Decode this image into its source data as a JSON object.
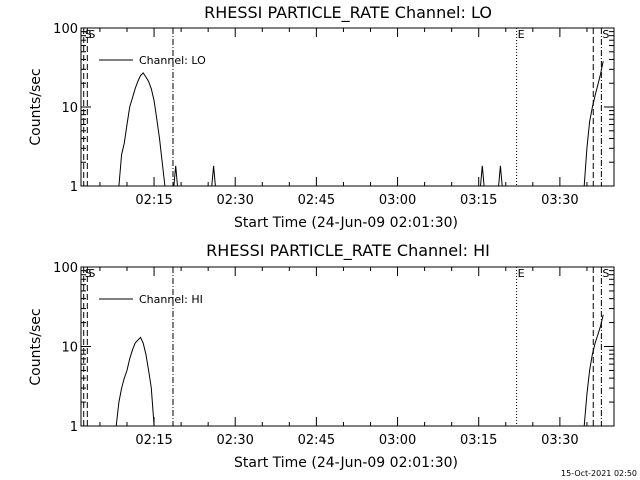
{
  "footer": {
    "timestamp": "15-Oct-2021 02:50"
  },
  "chart_data": [
    {
      "type": "line",
      "title": "RHESSI PARTICLE_RATE Channel: LO",
      "xlabel": "Start Time (24-Jun-09 02:01:30)",
      "ylabel": "Counts/sec",
      "yscale": "log",
      "ylim": [
        1,
        100
      ],
      "xlim": [
        "02:01:30",
        "03:40:00"
      ],
      "y_ticks": [
        1,
        10,
        100
      ],
      "y_tick_labels": [
        "1",
        "10",
        "100"
      ],
      "x_ticks": [
        "02:15",
        "02:30",
        "02:45",
        "03:00",
        "03:15",
        "03:30"
      ],
      "legend": {
        "position": "top-left",
        "entries": [
          "Channel: LO"
        ]
      },
      "series": [
        {
          "name": "Channel: LO",
          "x": [
            "02:07:30",
            "02:08:30",
            "02:09:00",
            "02:09:30",
            "02:10:00",
            "02:10:30",
            "02:11:00",
            "02:11:30",
            "02:12:00",
            "02:12:30",
            "02:13:00",
            "02:13:30",
            "02:14:00",
            "02:14:30",
            "02:15:00",
            "02:15:30",
            "02:16:00",
            "02:16:30",
            "02:17:00",
            "02:18:00",
            "02:18:40",
            "02:19:00",
            "02:19:20",
            "02:25:40",
            "02:26:00",
            "02:26:20",
            "03:15:20",
            "03:15:40",
            "03:16:00",
            "03:18:40",
            "03:19:00",
            "03:19:20",
            "03:34:30",
            "03:35:00",
            "03:35:30",
            "03:36:00",
            "03:36:30",
            "03:37:00",
            "03:37:30",
            "03:38:00"
          ],
          "y": [
            1,
            1,
            2.5,
            3.5,
            6,
            10,
            13,
            17,
            21,
            25,
            27,
            24,
            21,
            17,
            12,
            7,
            4,
            2,
            1,
            1,
            1,
            1.8,
            1,
            1,
            1.8,
            1,
            1,
            1.8,
            1,
            1,
            1.8,
            1,
            1,
            3,
            6.5,
            10,
            14,
            19,
            26,
            38
          ],
          "gaps_after": [
            19,
            22,
            25,
            28,
            31
          ]
        }
      ],
      "vertical_markers": [
        {
          "label": "S",
          "style": "dashed",
          "x": "02:02:00"
        },
        {
          "label": "S",
          "style": "dashed",
          "x": "02:02:40"
        },
        {
          "label": "",
          "style": "dashdot",
          "x": "02:18:30"
        },
        {
          "label": "E",
          "style": "dotted",
          "x": "03:22:00"
        },
        {
          "label": "",
          "style": "dashed",
          "x": "03:36:10"
        },
        {
          "label": "S",
          "style": "dashdot",
          "x": "03:37:40"
        }
      ]
    },
    {
      "type": "line",
      "title": "RHESSI PARTICLE_RATE Channel: HI",
      "xlabel": "Start Time (24-Jun-09 02:01:30)",
      "ylabel": "Counts/sec",
      "yscale": "log",
      "ylim": [
        1,
        100
      ],
      "xlim": [
        "02:01:30",
        "03:40:00"
      ],
      "y_ticks": [
        1,
        10,
        100
      ],
      "y_tick_labels": [
        "1",
        "10",
        "100"
      ],
      "x_ticks": [
        "02:15",
        "02:30",
        "02:45",
        "03:00",
        "03:15",
        "03:30"
      ],
      "legend": {
        "position": "top-left",
        "entries": [
          "Channel: HI"
        ]
      },
      "series": [
        {
          "name": "Channel: HI",
          "x": [
            "02:08:00",
            "02:08:30",
            "02:09:00",
            "02:09:30",
            "02:10:00",
            "02:10:30",
            "02:11:00",
            "02:11:30",
            "02:12:00",
            "02:12:30",
            "02:13:00",
            "02:13:30",
            "02:14:00",
            "02:14:30",
            "02:15:00",
            "03:34:30",
            "03:35:00",
            "03:35:30",
            "03:36:00",
            "03:36:30",
            "03:37:00",
            "03:37:30",
            "03:38:00"
          ],
          "y": [
            1,
            2,
            3,
            4,
            5,
            7,
            9,
            11,
            12,
            13,
            11,
            8,
            5,
            3,
            1,
            1,
            2.5,
            5,
            8,
            11,
            14,
            18,
            25
          ],
          "gaps_after": [
            14
          ]
        }
      ],
      "vertical_markers": [
        {
          "label": "S",
          "style": "dashed",
          "x": "02:02:00"
        },
        {
          "label": "S",
          "style": "dashed",
          "x": "02:02:40"
        },
        {
          "label": "",
          "style": "dashdot",
          "x": "02:18:30"
        },
        {
          "label": "E",
          "style": "dotted",
          "x": "03:22:00"
        },
        {
          "label": "",
          "style": "dashed",
          "x": "03:36:10"
        },
        {
          "label": "S",
          "style": "dashdot",
          "x": "03:37:40"
        }
      ]
    }
  ]
}
